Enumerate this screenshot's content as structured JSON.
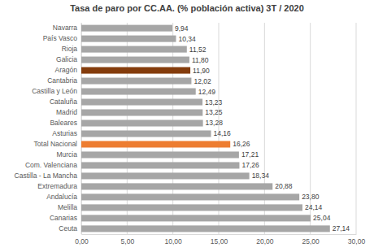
{
  "chart_data": {
    "type": "bar",
    "orientation": "horizontal",
    "title": "Tasa de paro por CC.AA. (% población activa) 3T / 2020",
    "categories": [
      "Navarra",
      "País Vasco",
      "Rioja",
      "Galicia",
      "Aragón",
      "Cantabria",
      "Castilla y León",
      "Cataluña",
      "Madrid",
      "Baleares",
      "Asturias",
      "Total Nacional",
      "Murcia",
      "Com. Valenciana",
      "Castilla - La Mancha",
      "Extremadura",
      "Andalucía",
      "Melilla",
      "Canarias",
      "Ceuta"
    ],
    "values": [
      9.94,
      10.34,
      11.52,
      11.8,
      11.9,
      12.02,
      12.49,
      13.23,
      13.25,
      13.28,
      14.16,
      16.26,
      17.21,
      17.26,
      18.34,
      20.88,
      23.8,
      24.14,
      25.04,
      27.14
    ],
    "value_labels": [
      "9,94",
      "10,34",
      "11,52",
      "11,80",
      "11,90",
      "12,02",
      "12,49",
      "13,23",
      "13,25",
      "13,28",
      "14,16",
      "16,26",
      "17,21",
      "17,26",
      "18,34",
      "20,88",
      "23,80",
      "24,14",
      "25,04",
      "27,14"
    ],
    "colors": [
      "#a6a6a6",
      "#a6a6a6",
      "#a6a6a6",
      "#a6a6a6",
      "#843c0c",
      "#a6a6a6",
      "#a6a6a6",
      "#a6a6a6",
      "#a6a6a6",
      "#a6a6a6",
      "#a6a6a6",
      "#ed7d31",
      "#a6a6a6",
      "#a6a6a6",
      "#a6a6a6",
      "#a6a6a6",
      "#a6a6a6",
      "#a6a6a6",
      "#a6a6a6",
      "#a6a6a6"
    ],
    "data_labels": true,
    "grid": true,
    "xlim": [
      0,
      30
    ],
    "xticks": [
      {
        "value": 0,
        "label": "0,00"
      },
      {
        "value": 5,
        "label": "5,00"
      },
      {
        "value": 10,
        "label": "10,00"
      },
      {
        "value": 15,
        "label": "15,00"
      },
      {
        "value": 20,
        "label": "20,00"
      },
      {
        "value": 25,
        "label": "25,00"
      },
      {
        "value": 30,
        "label": "30,00"
      }
    ]
  }
}
